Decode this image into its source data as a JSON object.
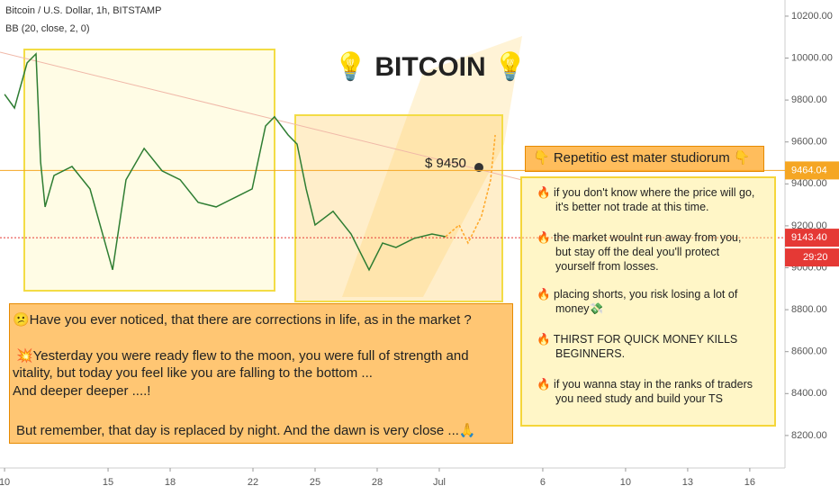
{
  "header": {
    "symbol": "Bitcoin / U.S. Dollar, 1h, BITSTAMP",
    "indicator": "BB (20, close, 2, 0)"
  },
  "chart_data": {
    "type": "line",
    "title": "💡 BITCOIN 💡",
    "x": [
      0,
      0.48,
      1.09,
      1.52,
      1.74,
      1.96,
      2.39,
      3.26,
      4.13,
      5.22,
      5.87,
      6.74,
      7.61,
      8.48,
      9.35,
      10.22,
      11.09,
      11.96,
      12.61,
      13.04,
      13.7,
      14.13,
      14.57,
      15,
      15.87,
      16.74,
      17.61,
      18.26,
      18.91,
      19.78,
      20.65,
      21.3,
      21.96,
      22.39,
      23.04,
      23.48,
      23.7
    ],
    "series": [
      {
        "color": "#2e7d32",
        "values": [
          9827,
          9762,
          9977,
          10020,
          9505,
          9290,
          9440,
          9483,
          9376,
          8990,
          9420,
          9569,
          9462,
          9420,
          9312,
          9290,
          9333,
          9376,
          9676,
          9720,
          9633,
          9590,
          9376,
          9204,
          9269,
          9161,
          8990,
          9118,
          9097,
          9140,
          9161,
          9148,
          null,
          null,
          null,
          null,
          null
        ]
      },
      {
        "color": "#ffa726",
        "dashed": true,
        "values": [
          null,
          null,
          null,
          null,
          null,
          null,
          null,
          null,
          null,
          null,
          null,
          null,
          null,
          null,
          null,
          null,
          null,
          null,
          null,
          null,
          null,
          null,
          null,
          null,
          null,
          null,
          null,
          null,
          null,
          null,
          null,
          9148,
          9204,
          9118,
          9247,
          9419,
          9633
        ]
      }
    ],
    "xlim": [
      -0.22,
      37.7
    ],
    "xticks": [
      {
        "value": 0,
        "label": "10"
      },
      {
        "value": 5,
        "label": "15"
      },
      {
        "value": 8,
        "label": "18"
      },
      {
        "value": 12,
        "label": "22"
      },
      {
        "value": 15,
        "label": "25"
      },
      {
        "value": 18,
        "label": "28"
      },
      {
        "value": 21,
        "label": "Jul"
      },
      {
        "value": 26,
        "label": "6"
      },
      {
        "value": 30,
        "label": "10"
      },
      {
        "value": 33,
        "label": "13"
      },
      {
        "value": 36,
        "label": "16"
      }
    ],
    "ylim": [
      8045,
      10277
    ],
    "yticks": [
      {
        "value": 8200,
        "label": "8200.00"
      },
      {
        "value": 8400,
        "label": "8400.00"
      },
      {
        "value": 8600,
        "label": "8600.00"
      },
      {
        "value": 8800,
        "label": "8800.00"
      },
      {
        "value": 9000,
        "label": "9000.00"
      },
      {
        "value": 9200,
        "label": "9200.00"
      },
      {
        "value": 9400,
        "label": "9400.00"
      },
      {
        "value": 9600,
        "label": "9600.00"
      },
      {
        "value": 9800,
        "label": "9800.00"
      },
      {
        "value": 10000,
        "label": "10000.00"
      },
      {
        "value": 10200,
        "label": "10200.00"
      }
    ],
    "price_note": "$ 9450",
    "price_labels": [
      {
        "value": 9464.04,
        "label": "9464.04",
        "color": "#f5a623"
      },
      {
        "value": 9143.4,
        "label": "9143.40",
        "color": "#e53935"
      }
    ],
    "countdown": "29:20"
  },
  "notes": {
    "left": [
      "😕Have you ever noticed, that there are corrections in life, as in the market ?",
      "💥Yesterday you were ready flew to the moon, you were full of strength and",
      "vitality, but today you feel like you are falling to the bottom ...",
      "And deeper deeper ....!",
      "But remember, that day is replaced by night. And the dawn is very close ...🙏"
    ],
    "heading": "👇 Repetitio est mater studiorum 👇",
    "items": [
      [
        "🔥 if you don't know where the price will go,",
        "it's better not trade at this time."
      ],
      [
        "🔥 the market woulnt run away from you,",
        "but stay off the deal  you'll protect",
        "yourself from losses."
      ],
      [
        "🔥 placing shorts, you risk losing a lot of",
        "money💸"
      ],
      [
        "🔥 THIRST FOR QUICK MONEY  KILLS",
        "BEGINNERS."
      ],
      [
        "🔥 if you wanna stay in the ranks of traders",
        "you need study and build your TS"
      ]
    ]
  }
}
